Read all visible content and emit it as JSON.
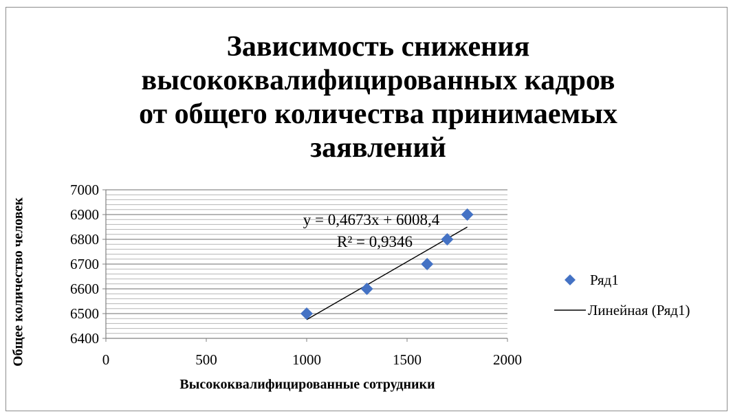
{
  "chart_data": {
    "type": "scatter",
    "title": "Зависимость снижения высококвалифицированных кадров от общего количества принимаемых заявлений",
    "title_lines": [
      "Зависимость снижения",
      "высококвалифицированных кадров",
      "от общего количества принимаемых",
      "заявлений"
    ],
    "xlabel": "Высококвалифицированные сотрудники",
    "ylabel": "Общее количество человек",
    "xlim": [
      0,
      2000
    ],
    "ylim": [
      6400,
      7000
    ],
    "x_ticks": [
      0,
      500,
      1000,
      1500,
      2000
    ],
    "y_ticks": [
      6400,
      6500,
      6600,
      6700,
      6800,
      6900,
      7000
    ],
    "y_minor_step": 20,
    "grid": "horizontal",
    "legend_position": "right",
    "series": [
      {
        "name": "Ряд1",
        "color": "#4472C4",
        "marker": "diamond",
        "x": [
          1000,
          1300,
          1600,
          1700,
          1800
        ],
        "y": [
          6500,
          6600,
          6700,
          6800,
          6900
        ]
      }
    ],
    "trendline": {
      "name": "Линейная (Ряд1)",
      "type": "linear",
      "slope": 0.4673,
      "intercept": 6008.4,
      "x_range": [
        1000,
        1800
      ],
      "equation": "y = 0,4673x + 6008,4",
      "r_squared": "R² = 0,9346",
      "color": "#000000"
    }
  }
}
